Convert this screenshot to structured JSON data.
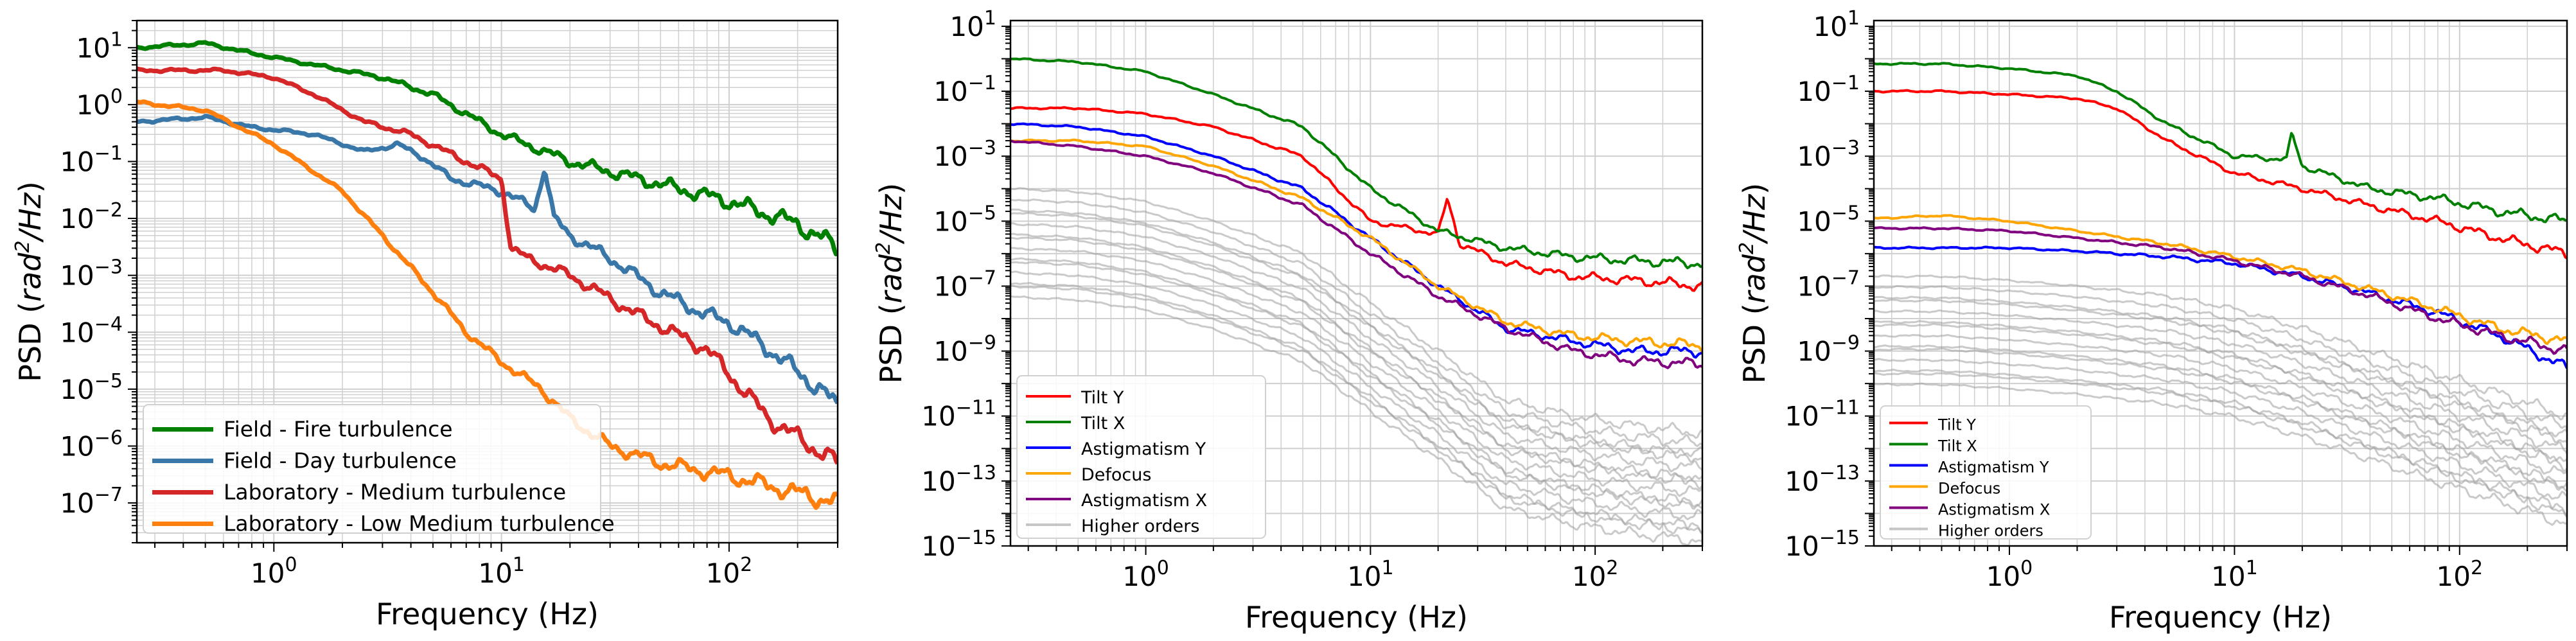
{
  "chart_data": [
    {
      "type": "line",
      "xscale": "log",
      "yscale": "log",
      "xlabel": "Frequency (Hz)",
      "ylabel": "PSD (rad²/Hz)",
      "ylabel_plain": "PSD (",
      "ylabel_italic": "rad",
      "ylabel_sup": "2",
      "ylabel_tail": "/Hz",
      "ylabel_close": ")",
      "xlim": [
        0.25,
        300
      ],
      "ylim": [
        2e-08,
        30
      ],
      "xticks": [
        {
          "v": 1,
          "m": "10",
          "e": "0"
        },
        {
          "v": 10,
          "m": "10",
          "e": "1"
        },
        {
          "v": 100,
          "m": "10",
          "e": "2"
        }
      ],
      "yticks": [
        {
          "v": 10.0,
          "m": "10",
          "e": "1"
        },
        {
          "v": 1.0,
          "m": "10",
          "e": "0"
        },
        {
          "v": 0.1,
          "m": "10",
          "e": "−1"
        },
        {
          "v": 0.01,
          "m": "10",
          "e": "−2"
        },
        {
          "v": 0.001,
          "m": "10",
          "e": "−3"
        },
        {
          "v": 0.0001,
          "m": "10",
          "e": "−4"
        },
        {
          "v": 1e-05,
          "m": "10",
          "e": "−5"
        },
        {
          "v": 1e-06,
          "m": "10",
          "e": "−6"
        },
        {
          "v": 1e-07,
          "m": "10",
          "e": "−7"
        }
      ],
      "minor_grid": true,
      "legend_location": "lower-left",
      "legend_size": "leg1",
      "series": [
        {
          "name": "Field - Fire turbulence",
          "color": "#008000",
          "width": 7,
          "x": [
            0.25,
            0.5,
            0.8,
            1.5,
            3,
            5,
            10,
            20,
            40,
            100,
            200,
            300
          ],
          "y": [
            10,
            12,
            8,
            5,
            3,
            1.5,
            0.3,
            0.1,
            0.05,
            0.02,
            0.008,
            0.003
          ]
        },
        {
          "name": "Field - Day turbulence",
          "color": "#3a77a9",
          "width": 7,
          "x": [
            0.25,
            0.5,
            0.8,
            1.5,
            2.5,
            3.5,
            4.5,
            6,
            10,
            14,
            15.5,
            17,
            20,
            30,
            50,
            80,
            100,
            150,
            200,
            250,
            300
          ],
          "y": [
            0.5,
            0.6,
            0.4,
            0.3,
            0.15,
            0.2,
            0.12,
            0.05,
            0.03,
            0.015,
            0.08,
            0.01,
            0.005,
            0.002,
            0.0005,
            0.0002,
            0.00015,
            5e-05,
            2e-05,
            1e-05,
            5e-06
          ]
        },
        {
          "name": "Laboratory - Medium turbulence",
          "color": "#d62728",
          "width": 7,
          "x": [
            0.25,
            0.6,
            1,
            1.5,
            2.5,
            4,
            7,
            10,
            11,
            13,
            20,
            40,
            80,
            150,
            300
          ],
          "y": [
            4,
            4,
            3,
            1.5,
            0.5,
            0.3,
            0.1,
            0.05,
            0.003,
            0.002,
            0.001,
            0.0002,
            5e-05,
            3e-06,
            5e-07
          ]
        },
        {
          "name": "Laboratory - Low Medium turbulence",
          "color": "#ff7f0e",
          "width": 7,
          "x": [
            0.25,
            0.5,
            1,
            2,
            3,
            5,
            7,
            10,
            15,
            20,
            30,
            50,
            100,
            200,
            300
          ],
          "y": [
            1.1,
            0.8,
            0.2,
            0.03,
            0.005,
            0.0005,
            0.0001,
            3e-05,
            1e-05,
            3e-06,
            1e-06,
            5e-07,
            3e-07,
            1.5e-07,
            1e-07
          ]
        }
      ]
    },
    {
      "type": "line",
      "xscale": "log",
      "yscale": "log",
      "xlabel": "Frequency (Hz)",
      "ylabel": "PSD (rad²/Hz)",
      "ylabel_plain": "PSD (",
      "ylabel_italic": "rad",
      "ylabel_sup": "2",
      "ylabel_tail": "/Hz",
      "ylabel_close": ")",
      "xlim": [
        0.25,
        300
      ],
      "ylim": [
        1e-15,
        15
      ],
      "xticks": [
        {
          "v": 1,
          "m": "10",
          "e": "0"
        },
        {
          "v": 10,
          "m": "10",
          "e": "1"
        },
        {
          "v": 100,
          "m": "10",
          "e": "2"
        }
      ],
      "yticks": [
        {
          "v": 10.0,
          "m": "10",
          "e": "1"
        },
        {
          "v": 0.1,
          "m": "10",
          "e": "−1"
        },
        {
          "v": 0.001,
          "m": "10",
          "e": "−3"
        },
        {
          "v": 1e-05,
          "m": "10",
          "e": "−5"
        },
        {
          "v": 1e-07,
          "m": "10",
          "e": "−7"
        },
        {
          "v": 1e-09,
          "m": "10",
          "e": "−9"
        },
        {
          "v": 1e-11,
          "m": "10",
          "e": "−11"
        },
        {
          "v": 1e-13,
          "m": "10",
          "e": "−13"
        },
        {
          "v": 1e-15,
          "m": "10",
          "e": "−15"
        }
      ],
      "minor_grid": false,
      "legend_location": "lower-left",
      "legend_size": "leg2",
      "series": [
        {
          "name": "Tilt Y",
          "color": "#ff0000",
          "width": 4,
          "x": [
            0.25,
            0.5,
            1,
            2,
            5,
            10,
            20,
            22,
            25,
            40,
            80,
            150,
            300
          ],
          "y": [
            0.03,
            0.03,
            0.02,
            0.008,
            0.001,
            1e-05,
            4e-06,
            5e-05,
            2e-06,
            5e-07,
            2e-07,
            1.5e-07,
            1e-07
          ]
        },
        {
          "name": "Tilt X",
          "color": "#008000",
          "width": 4,
          "x": [
            0.25,
            0.5,
            1,
            2,
            5,
            10,
            20,
            40,
            80,
            150,
            300
          ],
          "y": [
            1,
            0.8,
            0.4,
            0.08,
            0.008,
            0.0001,
            5e-06,
            1.5e-06,
            8e-07,
            6e-07,
            5e-07
          ]
        },
        {
          "name": "Astigmatism Y",
          "color": "#0000ff",
          "width": 4,
          "x": [
            0.25,
            0.5,
            1,
            2,
            5,
            10,
            20,
            40,
            80,
            150,
            300
          ],
          "y": [
            0.01,
            0.008,
            0.004,
            0.001,
            0.0001,
            3e-06,
            1e-07,
            5e-09,
            2e-09,
            1e-09,
            1e-09
          ]
        },
        {
          "name": "Defocus",
          "color": "#ffa500",
          "width": 4,
          "x": [
            0.25,
            0.5,
            1,
            2,
            5,
            10,
            20,
            40,
            80,
            150,
            300
          ],
          "y": [
            0.003,
            0.003,
            0.002,
            0.0005,
            5e-05,
            3e-06,
            1e-07,
            8e-09,
            3e-09,
            2e-09,
            1.5e-09
          ]
        },
        {
          "name": "Astigmatism X",
          "color": "#800080",
          "width": 4,
          "x": [
            0.25,
            0.5,
            1,
            2,
            5,
            10,
            20,
            40,
            80,
            150,
            300
          ],
          "y": [
            0.003,
            0.002,
            0.001,
            0.0003,
            3e-05,
            1e-06,
            5e-08,
            5e-09,
            1e-09,
            5e-10,
            4e-10
          ]
        },
        {
          "name": "Higher orders",
          "color": "#9e9e9e",
          "width": 4,
          "x": [
            0.25,
            0.5,
            1,
            2,
            5,
            10,
            20,
            40,
            80,
            150,
            300
          ],
          "y": [
            0.0001,
            8e-05,
            4e-05,
            1e-05,
            1e-06,
            3e-08,
            1e-09,
            3e-11,
            1e-11,
            5e-12,
            3e-12
          ]
        }
      ]
    },
    {
      "type": "line",
      "xscale": "log",
      "yscale": "log",
      "xlabel": "Frequency (Hz)",
      "ylabel": "PSD (rad²/Hz)",
      "ylabel_plain": "PSD (",
      "ylabel_italic": "rad",
      "ylabel_sup": "2",
      "ylabel_tail": "/Hz",
      "ylabel_close": ")",
      "xlim": [
        0.25,
        300
      ],
      "ylim": [
        1e-15,
        15
      ],
      "xticks": [
        {
          "v": 1,
          "m": "10",
          "e": "0"
        },
        {
          "v": 10,
          "m": "10",
          "e": "1"
        },
        {
          "v": 100,
          "m": "10",
          "e": "2"
        }
      ],
      "yticks": [
        {
          "v": 10.0,
          "m": "10",
          "e": "1"
        },
        {
          "v": 0.1,
          "m": "10",
          "e": "−1"
        },
        {
          "v": 0.001,
          "m": "10",
          "e": "−3"
        },
        {
          "v": 1e-05,
          "m": "10",
          "e": "−5"
        },
        {
          "v": 1e-07,
          "m": "10",
          "e": "−7"
        },
        {
          "v": 1e-09,
          "m": "10",
          "e": "−9"
        },
        {
          "v": 1e-11,
          "m": "10",
          "e": "−11"
        },
        {
          "v": 1e-13,
          "m": "10",
          "e": "−13"
        },
        {
          "v": 1e-15,
          "m": "10",
          "e": "−15"
        }
      ],
      "minor_grid": false,
      "legend_location": "lower-left",
      "legend_size": "leg3",
      "series": [
        {
          "name": "Tilt Y",
          "color": "#ff0000",
          "width": 4,
          "x": [
            0.25,
            0.5,
            1,
            2,
            3,
            5,
            10,
            20,
            40,
            80,
            150,
            300
          ],
          "y": [
            0.1,
            0.1,
            0.08,
            0.06,
            0.03,
            0.003,
            0.0003,
            0.0001,
            3e-05,
            1e-05,
            3e-06,
            1e-06
          ]
        },
        {
          "name": "Tilt X",
          "color": "#008000",
          "width": 4,
          "x": [
            0.25,
            0.5,
            1,
            2,
            3,
            5,
            10,
            17,
            18,
            20,
            40,
            80,
            150,
            300
          ],
          "y": [
            0.7,
            0.7,
            0.5,
            0.3,
            0.1,
            0.01,
            0.001,
            0.0008,
            0.005,
            0.0005,
            0.0001,
            5e-05,
            2e-05,
            1e-05
          ]
        },
        {
          "name": "Astigmatism Y",
          "color": "#0000ff",
          "width": 4,
          "x": [
            0.25,
            0.5,
            1,
            2,
            5,
            10,
            20,
            40,
            80,
            150,
            300
          ],
          "y": [
            1.5e-06,
            1.5e-06,
            1.5e-06,
            1.2e-06,
            8e-07,
            5e-07,
            2e-07,
            6e-08,
            1.5e-08,
            3e-09,
            3e-10
          ]
        },
        {
          "name": "Defocus",
          "color": "#ffa500",
          "width": 4,
          "x": [
            0.25,
            0.5,
            1,
            2,
            5,
            10,
            20,
            40,
            80,
            150,
            300
          ],
          "y": [
            1.2e-05,
            1.5e-05,
            1e-05,
            5e-06,
            2e-06,
            8e-07,
            3e-07,
            8e-08,
            2e-08,
            5e-09,
            2e-09
          ]
        },
        {
          "name": "Astigmatism X",
          "color": "#800080",
          "width": 4,
          "x": [
            0.25,
            0.5,
            1,
            2,
            5,
            10,
            20,
            40,
            80,
            150,
            300
          ],
          "y": [
            6e-06,
            6e-06,
            5e-06,
            3e-06,
            1.5e-06,
            6e-07,
            2e-07,
            5e-08,
            1e-08,
            3e-09,
            1e-09
          ]
        },
        {
          "name": "Higher orders",
          "color": "#9e9e9e",
          "width": 4,
          "x": [
            0.25,
            0.5,
            1,
            2,
            5,
            10,
            20,
            40,
            80,
            150,
            300
          ],
          "y": [
            2e-07,
            2e-07,
            1.5e-07,
            1e-07,
            5e-08,
            2e-08,
            5e-09,
            1e-09,
            2e-10,
            5e-11,
            1e-11
          ]
        }
      ]
    }
  ]
}
